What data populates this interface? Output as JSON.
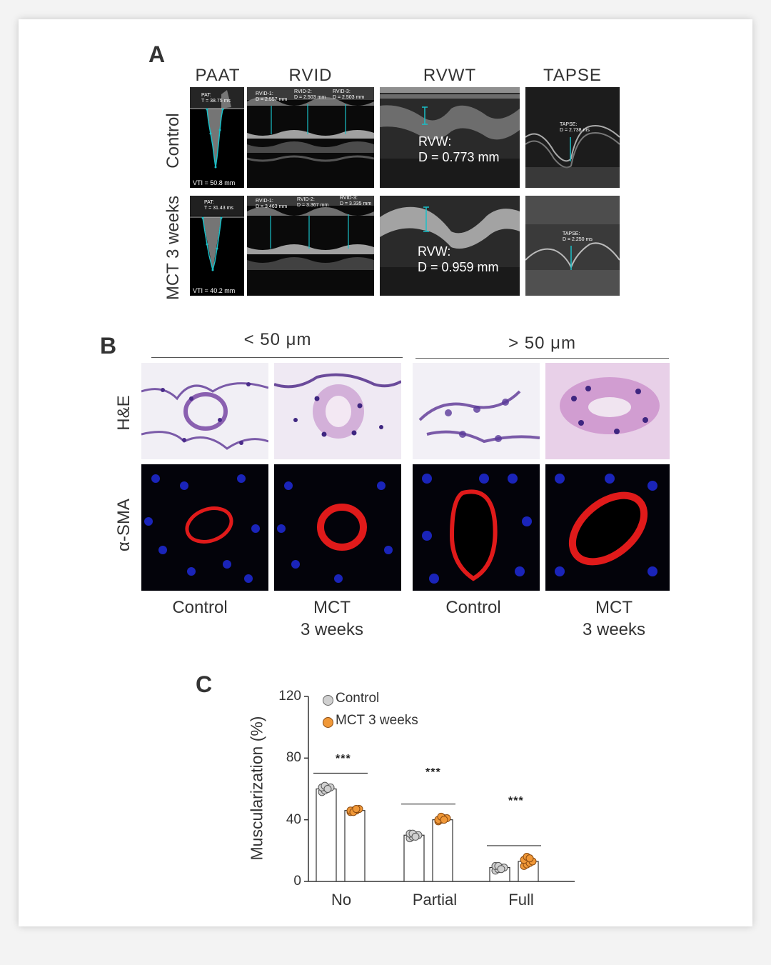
{
  "panel_labels": {
    "a": "A",
    "b": "B",
    "c": "C"
  },
  "panel_a": {
    "columns": [
      "PAAT",
      "RVID",
      "RVWT",
      "TAPSE"
    ],
    "rows": [
      "Control",
      "MCT 3 weeks"
    ],
    "control": {
      "paat_meas": "PAT:\nT = 38.75 ms",
      "paat_vti": "VTI = 50.8 mm",
      "rvid_meas": [
        "RVID-1:\nD = 2.557 mm",
        "RVID-2:\nD = 2.503 mm",
        "RVID-3:\nD = 2.503 mm"
      ],
      "rvw_text": "RVW:\nD = 0.773 mm",
      "tapse_meas": "TAPSE:\nD = 2.738 ms"
    },
    "mct": {
      "paat_meas": "PAT:\nT = 31.43 ms",
      "paat_vti": "VTI = 40.2 mm",
      "rvid_meas": [
        "RVID-1:\nD = 3.463 mm",
        "RVID-2:\nD = 3.367 mm",
        "RVID-3:\nD = 3.335 mm"
      ],
      "rvw_text": "RVW:\nD = 0.959 mm",
      "tapse_meas": "TAPSE:\nD = 2.250 ms"
    }
  },
  "panel_b": {
    "size_groups": [
      "< 50 μm",
      "> 50 μm"
    ],
    "rows": [
      "H&E",
      "α-SMA"
    ],
    "captions": [
      "Control",
      "MCT\n3 weeks",
      "Control",
      "MCT\n3 weeks"
    ]
  },
  "panel_c": {
    "legend": [
      "Control",
      "MCT 3 weeks"
    ],
    "ylabel": "Muscularization (%)",
    "yticks": [
      "0",
      "40",
      "80",
      "120"
    ],
    "significance": [
      "***",
      "***",
      "***"
    ],
    "colors": {
      "control": "#d0d0d0",
      "mct": "#f09838"
    }
  },
  "chart_data": {
    "type": "bar",
    "categories": [
      "No",
      "Partial",
      "Full"
    ],
    "ylabel": "Muscularization (%)",
    "ylim": [
      0,
      120
    ],
    "series": [
      {
        "name": "Control",
        "values": [
          60,
          30,
          9
        ],
        "points": [
          [
            58,
            59,
            60,
            61,
            61,
            62,
            60
          ],
          [
            28,
            29,
            30,
            30,
            31,
            31,
            29
          ],
          [
            7,
            8,
            9,
            9,
            10,
            10,
            8
          ]
        ]
      },
      {
        "name": "MCT 3 weeks",
        "values": [
          46,
          40,
          13
        ],
        "points": [
          [
            45,
            46,
            46,
            47,
            46,
            45,
            47
          ],
          [
            39,
            40,
            41,
            41,
            40,
            42,
            40
          ],
          [
            10,
            11,
            12,
            13,
            14,
            16,
            15
          ]
        ]
      }
    ],
    "significance": [
      "***",
      "***",
      "***"
    ]
  }
}
